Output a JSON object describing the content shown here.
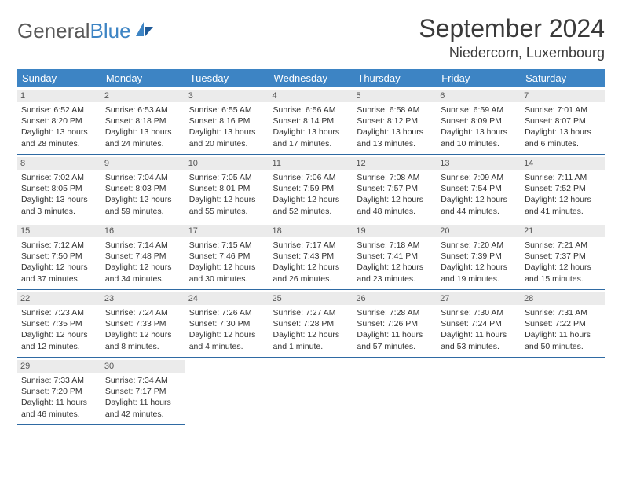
{
  "brand": {
    "part1": "General",
    "part2": "Blue"
  },
  "title": "September 2024",
  "location": "Niedercorn, Luxembourg",
  "colors": {
    "header_bg": "#3d84c4",
    "header_text": "#ffffff",
    "daynum_bg": "#ebebeb",
    "cell_border": "#2f6aa3",
    "logo_gray": "#595959",
    "logo_blue": "#3d84c4"
  },
  "weekdays": [
    "Sunday",
    "Monday",
    "Tuesday",
    "Wednesday",
    "Thursday",
    "Friday",
    "Saturday"
  ],
  "weeks": [
    [
      {
        "d": "1",
        "sr": "6:52 AM",
        "ss": "8:20 PM",
        "dl": "13 hours and 28 minutes."
      },
      {
        "d": "2",
        "sr": "6:53 AM",
        "ss": "8:18 PM",
        "dl": "13 hours and 24 minutes."
      },
      {
        "d": "3",
        "sr": "6:55 AM",
        "ss": "8:16 PM",
        "dl": "13 hours and 20 minutes."
      },
      {
        "d": "4",
        "sr": "6:56 AM",
        "ss": "8:14 PM",
        "dl": "13 hours and 17 minutes."
      },
      {
        "d": "5",
        "sr": "6:58 AM",
        "ss": "8:12 PM",
        "dl": "13 hours and 13 minutes."
      },
      {
        "d": "6",
        "sr": "6:59 AM",
        "ss": "8:09 PM",
        "dl": "13 hours and 10 minutes."
      },
      {
        "d": "7",
        "sr": "7:01 AM",
        "ss": "8:07 PM",
        "dl": "13 hours and 6 minutes."
      }
    ],
    [
      {
        "d": "8",
        "sr": "7:02 AM",
        "ss": "8:05 PM",
        "dl": "13 hours and 3 minutes."
      },
      {
        "d": "9",
        "sr": "7:04 AM",
        "ss": "8:03 PM",
        "dl": "12 hours and 59 minutes."
      },
      {
        "d": "10",
        "sr": "7:05 AM",
        "ss": "8:01 PM",
        "dl": "12 hours and 55 minutes."
      },
      {
        "d": "11",
        "sr": "7:06 AM",
        "ss": "7:59 PM",
        "dl": "12 hours and 52 minutes."
      },
      {
        "d": "12",
        "sr": "7:08 AM",
        "ss": "7:57 PM",
        "dl": "12 hours and 48 minutes."
      },
      {
        "d": "13",
        "sr": "7:09 AM",
        "ss": "7:54 PM",
        "dl": "12 hours and 44 minutes."
      },
      {
        "d": "14",
        "sr": "7:11 AM",
        "ss": "7:52 PM",
        "dl": "12 hours and 41 minutes."
      }
    ],
    [
      {
        "d": "15",
        "sr": "7:12 AM",
        "ss": "7:50 PM",
        "dl": "12 hours and 37 minutes."
      },
      {
        "d": "16",
        "sr": "7:14 AM",
        "ss": "7:48 PM",
        "dl": "12 hours and 34 minutes."
      },
      {
        "d": "17",
        "sr": "7:15 AM",
        "ss": "7:46 PM",
        "dl": "12 hours and 30 minutes."
      },
      {
        "d": "18",
        "sr": "7:17 AM",
        "ss": "7:43 PM",
        "dl": "12 hours and 26 minutes."
      },
      {
        "d": "19",
        "sr": "7:18 AM",
        "ss": "7:41 PM",
        "dl": "12 hours and 23 minutes."
      },
      {
        "d": "20",
        "sr": "7:20 AM",
        "ss": "7:39 PM",
        "dl": "12 hours and 19 minutes."
      },
      {
        "d": "21",
        "sr": "7:21 AM",
        "ss": "7:37 PM",
        "dl": "12 hours and 15 minutes."
      }
    ],
    [
      {
        "d": "22",
        "sr": "7:23 AM",
        "ss": "7:35 PM",
        "dl": "12 hours and 12 minutes."
      },
      {
        "d": "23",
        "sr": "7:24 AM",
        "ss": "7:33 PM",
        "dl": "12 hours and 8 minutes."
      },
      {
        "d": "24",
        "sr": "7:26 AM",
        "ss": "7:30 PM",
        "dl": "12 hours and 4 minutes."
      },
      {
        "d": "25",
        "sr": "7:27 AM",
        "ss": "7:28 PM",
        "dl": "12 hours and 1 minute."
      },
      {
        "d": "26",
        "sr": "7:28 AM",
        "ss": "7:26 PM",
        "dl": "11 hours and 57 minutes."
      },
      {
        "d": "27",
        "sr": "7:30 AM",
        "ss": "7:24 PM",
        "dl": "11 hours and 53 minutes."
      },
      {
        "d": "28",
        "sr": "7:31 AM",
        "ss": "7:22 PM",
        "dl": "11 hours and 50 minutes."
      }
    ],
    [
      {
        "d": "29",
        "sr": "7:33 AM",
        "ss": "7:20 PM",
        "dl": "11 hours and 46 minutes."
      },
      {
        "d": "30",
        "sr": "7:34 AM",
        "ss": "7:17 PM",
        "dl": "11 hours and 42 minutes."
      },
      null,
      null,
      null,
      null,
      null
    ]
  ]
}
